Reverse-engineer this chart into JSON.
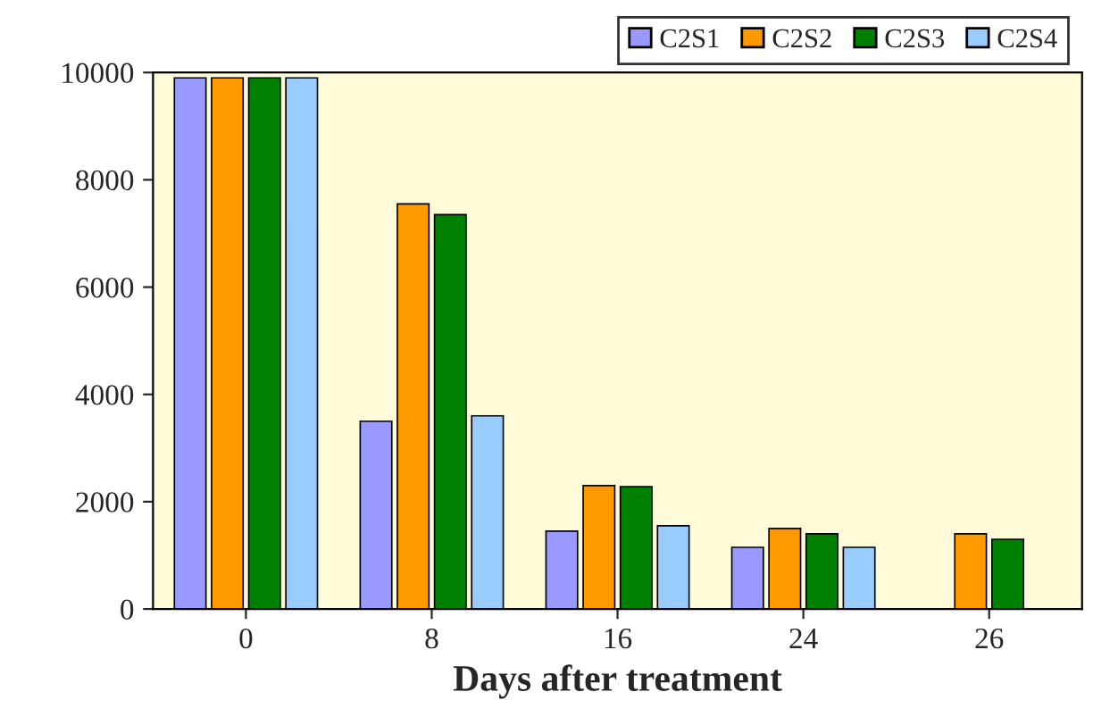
{
  "chart_data": {
    "type": "bar",
    "xlabel": "Days after treatment",
    "categories": [
      "0",
      "8",
      "16",
      "24",
      "26"
    ],
    "series": [
      {
        "name": "C2S1",
        "color": "#9999ff",
        "values": [
          9900,
          3500,
          1450,
          1150,
          null
        ]
      },
      {
        "name": "C2S2",
        "color": "#ff9900",
        "values": [
          9900,
          7550,
          2300,
          1500,
          1400
        ]
      },
      {
        "name": "C2S3",
        "color": "#008000",
        "values": [
          9900,
          7350,
          2280,
          1400,
          1300
        ]
      },
      {
        "name": "C2S4",
        "color": "#99ccff",
        "values": [
          9900,
          3600,
          1550,
          1150,
          null
        ]
      }
    ],
    "ylim": [
      0,
      10000
    ],
    "yticks": [
      0,
      2000,
      4000,
      6000,
      8000,
      10000
    ],
    "grid": false,
    "legend": "top right"
  }
}
